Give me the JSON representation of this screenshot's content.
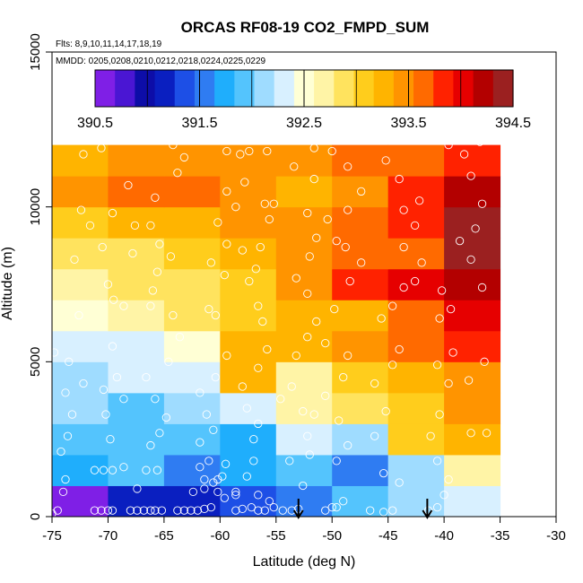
{
  "chart_data": {
    "type": "heatmap",
    "title": "ORCAS RF08-19 CO2_FMPD_SUM",
    "subtitle_flights": "Flts: 8,9,10,11,14,17,18,19",
    "subtitle_dates": "MMDD: 0205,0208,0210,0212,0218,0224,0225,0229",
    "xlabel": "Latitude (deg N)",
    "ylabel": "Altitude (m)",
    "xlim": [
      -75,
      -30
    ],
    "ylim": [
      0,
      15000
    ],
    "xticks": [
      -75,
      -70,
      -65,
      -60,
      -55,
      -50,
      -45,
      -40,
      -35,
      -30
    ],
    "xtick_labels": [
      "-75",
      "-70",
      "-65",
      "-60",
      "-55",
      "-50",
      "-45",
      "-40",
      "-35",
      "-30"
    ],
    "yticks": [
      0,
      5000,
      10000,
      15000
    ],
    "ytick_labels": [
      "0",
      "5000",
      "10000",
      "15000"
    ],
    "colorbar": {
      "min": 390.5,
      "max": 394.5,
      "ticks": [
        390.5,
        391.5,
        392.5,
        393.5,
        394.5
      ],
      "tick_labels": [
        "390.5",
        "391.5",
        "392.5",
        "393.5",
        "394.5"
      ],
      "colors": [
        "#7f1fe6",
        "#4a16d3",
        "#0d0da8",
        "#0a1fc0",
        "#1d4fe6",
        "#2f7cf2",
        "#1faefc",
        "#54c4fd",
        "#9fdcff",
        "#d8f0ff",
        "#ffffd5",
        "#fff4a6",
        "#ffe35e",
        "#ffcd1c",
        "#ffb400",
        "#ff9400",
        "#ff6a00",
        "#ff2200",
        "#e60000",
        "#b30000",
        "#9b2020"
      ]
    },
    "lat_bins": [
      -75,
      -70,
      -65,
      -60,
      -55,
      -50,
      -45,
      -40,
      -35
    ],
    "alt_bins": [
      0,
      1000,
      2000,
      3000,
      4000,
      5000,
      6000,
      7000,
      8000,
      9000,
      10000,
      11000,
      12000
    ],
    "grid": [
      [
        390.6,
        391.1,
        391.2,
        391.4,
        391.6,
        391.9,
        392.1,
        392.3
      ],
      [
        391.8,
        391.9,
        391.5,
        391.7,
        391.9,
        391.6,
        392.2,
        392.6
      ],
      [
        391.9,
        392.0,
        392.0,
        391.8,
        392.3,
        392.1,
        393.0,
        393.3
      ],
      [
        392.1,
        392.0,
        392.2,
        392.4,
        392.6,
        392.8,
        393.1,
        393.4
      ],
      [
        392.2,
        392.3,
        392.4,
        393.2,
        392.7,
        393.0,
        393.2,
        393.5
      ],
      [
        392.3,
        392.4,
        392.5,
        393.3,
        393.2,
        393.4,
        393.7,
        393.9
      ],
      [
        392.5,
        392.7,
        392.9,
        393.1,
        393.2,
        393.3,
        393.7,
        394.0
      ],
      [
        392.6,
        392.8,
        392.8,
        393.0,
        393.4,
        393.8,
        394.0,
        394.2
      ],
      [
        392.9,
        392.9,
        393.1,
        393.2,
        393.5,
        393.6,
        393.7,
        394.6
      ],
      [
        393.1,
        393.2,
        393.3,
        393.4,
        393.5,
        393.7,
        393.8,
        394.7
      ],
      [
        393.5,
        393.6,
        393.6,
        393.5,
        393.3,
        393.5,
        393.9,
        394.2
      ],
      [
        393.2,
        393.4,
        393.4,
        393.4,
        393.5,
        393.6,
        393.7,
        393.8
      ]
    ],
    "arrows_lat": [
      -53,
      -41.5
    ],
    "samples": [
      [
        -75,
        100
      ],
      [
        -74.5,
        200
      ],
      [
        -74,
        800
      ],
      [
        -73.8,
        1200
      ],
      [
        -74.2,
        2100
      ],
      [
        -73.6,
        2600
      ],
      [
        -73.2,
        3300
      ],
      [
        -73.8,
        4000
      ],
      [
        -74.8,
        5300
      ],
      [
        -73.5,
        5000
      ],
      [
        -72.2,
        4300
      ],
      [
        -72.6,
        6500
      ],
      [
        -73,
        8300
      ],
      [
        -71.6,
        9400
      ],
      [
        -72.4,
        9900
      ],
      [
        -70.6,
        11900
      ],
      [
        -72.2,
        11700
      ],
      [
        -71.2,
        200
      ],
      [
        -70.6,
        200
      ],
      [
        -70,
        200
      ],
      [
        -69.6,
        200
      ],
      [
        -70.4,
        1500
      ],
      [
        -71.2,
        1500
      ],
      [
        -69.6,
        1500
      ],
      [
        -68.6,
        1600
      ],
      [
        -69.8,
        2500
      ],
      [
        -70.2,
        3300
      ],
      [
        -70.4,
        4100
      ],
      [
        -69.2,
        4500
      ],
      [
        -68.6,
        3800
      ],
      [
        -69.6,
        5500
      ],
      [
        -68.6,
        6800
      ],
      [
        -69.5,
        7000
      ],
      [
        -70,
        7500
      ],
      [
        -69.6,
        9800
      ],
      [
        -67.6,
        9400
      ],
      [
        -68.2,
        10700
      ],
      [
        -70.5,
        8700
      ],
      [
        -67.8,
        8500
      ],
      [
        -68,
        200
      ],
      [
        -67.4,
        200
      ],
      [
        -66.8,
        200
      ],
      [
        -66.2,
        200
      ],
      [
        -65.8,
        200
      ],
      [
        -65.2,
        200
      ],
      [
        -67.4,
        900
      ],
      [
        -66.6,
        1500
      ],
      [
        -65.6,
        1500
      ],
      [
        -66.2,
        2300
      ],
      [
        -65.4,
        2700
      ],
      [
        -64.8,
        3200
      ],
      [
        -65.8,
        3800
      ],
      [
        -66.6,
        4500
      ],
      [
        -64.6,
        5000
      ],
      [
        -63.6,
        5800
      ],
      [
        -64.2,
        6500
      ],
      [
        -66.2,
        6800
      ],
      [
        -66,
        7300
      ],
      [
        -65.6,
        7900
      ],
      [
        -64.4,
        8400
      ],
      [
        -65.4,
        8800
      ],
      [
        -66.2,
        9400
      ],
      [
        -65.8,
        10300
      ],
      [
        -63.8,
        11100
      ],
      [
        -63.2,
        11600
      ],
      [
        -64.2,
        12000
      ],
      [
        -63.8,
        200
      ],
      [
        -63.2,
        200
      ],
      [
        -62.6,
        200
      ],
      [
        -62,
        200
      ],
      [
        -61.4,
        250
      ],
      [
        -60.8,
        300
      ],
      [
        -62.4,
        800
      ],
      [
        -61.4,
        900
      ],
      [
        -60.6,
        1100
      ],
      [
        -59.8,
        1300
      ],
      [
        -61.8,
        1600
      ],
      [
        -61,
        1800
      ],
      [
        -60.2,
        1200
      ],
      [
        -59.5,
        1700
      ],
      [
        -61.4,
        1200
      ],
      [
        -60.2,
        800
      ],
      [
        -59.6,
        600
      ],
      [
        -58.6,
        800
      ],
      [
        -61.8,
        2400
      ],
      [
        -60.6,
        2800
      ],
      [
        -61.2,
        3300
      ],
      [
        -61.8,
        4000
      ],
      [
        -60.4,
        4500
      ],
      [
        -59.4,
        5200
      ],
      [
        -60.4,
        6500
      ],
      [
        -61,
        6700
      ],
      [
        -59.6,
        7800
      ],
      [
        -60.8,
        8200
      ],
      [
        -59.4,
        8800
      ],
      [
        -58,
        8600
      ],
      [
        -60.2,
        9500
      ],
      [
        -58.6,
        10000
      ],
      [
        -59.4,
        10500
      ],
      [
        -58.2,
        11700
      ],
      [
        -59.4,
        11800
      ],
      [
        -58.6,
        200
      ],
      [
        -58,
        250
      ],
      [
        -57.2,
        300
      ],
      [
        -56.6,
        200
      ],
      [
        -56,
        200
      ],
      [
        -55.2,
        300
      ],
      [
        -58.6,
        700
      ],
      [
        -57.6,
        1300
      ],
      [
        -57,
        1800
      ],
      [
        -56.6,
        700
      ],
      [
        -55.6,
        500
      ],
      [
        -57,
        2500
      ],
      [
        -56.6,
        3000
      ],
      [
        -57.6,
        3500
      ],
      [
        -58,
        4200
      ],
      [
        -56.6,
        4800
      ],
      [
        -55.8,
        5400
      ],
      [
        -56.2,
        6300
      ],
      [
        -56.6,
        6800
      ],
      [
        -57.4,
        7600
      ],
      [
        -56.8,
        8000
      ],
      [
        -56.4,
        8700
      ],
      [
        -55.6,
        9600
      ],
      [
        -55.2,
        10100
      ],
      [
        -56,
        10100
      ],
      [
        -57.8,
        10800
      ],
      [
        -57.4,
        11800
      ],
      [
        -55.8,
        11800
      ],
      [
        -54.4,
        200
      ],
      [
        -53.6,
        200
      ],
      [
        -53,
        250
      ],
      [
        -52.6,
        1000
      ],
      [
        -53.8,
        1800
      ],
      [
        -52,
        2000
      ],
      [
        -54.6,
        3800
      ],
      [
        -53.6,
        4200
      ],
      [
        -52.6,
        3400
      ],
      [
        -51.6,
        3300
      ],
      [
        -52.2,
        2600
      ],
      [
        -53.2,
        5200
      ],
      [
        -52.2,
        5800
      ],
      [
        -51.4,
        6300
      ],
      [
        -52.2,
        7200
      ],
      [
        -53.2,
        7700
      ],
      [
        -52,
        8400
      ],
      [
        -51.4,
        9000
      ],
      [
        -52.2,
        9800
      ],
      [
        -51.6,
        10900
      ],
      [
        -53.4,
        11300
      ],
      [
        -51.6,
        11900
      ],
      [
        -50.6,
        200
      ],
      [
        -50,
        300
      ],
      [
        -49.6,
        300
      ],
      [
        -49,
        500
      ],
      [
        -49.6,
        1800
      ],
      [
        -48.6,
        2300
      ],
      [
        -49.4,
        3100
      ],
      [
        -50.6,
        3900
      ],
      [
        -49,
        4500
      ],
      [
        -48.6,
        5200
      ],
      [
        -50.6,
        5600
      ],
      [
        -49.8,
        6700
      ],
      [
        -48.4,
        7600
      ],
      [
        -47.4,
        8200
      ],
      [
        -48.8,
        8700
      ],
      [
        -49.6,
        8900
      ],
      [
        -50.4,
        9600
      ],
      [
        -48.6,
        9900
      ],
      [
        -47.4,
        10500
      ],
      [
        -48.6,
        11300
      ],
      [
        -50,
        11800
      ],
      [
        -46.6,
        200
      ],
      [
        -45.4,
        150
      ],
      [
        -44.6,
        200
      ],
      [
        -44,
        1100
      ],
      [
        -45.4,
        1400
      ],
      [
        -46.2,
        2600
      ],
      [
        -45.2,
        3400
      ],
      [
        -46.2,
        4300
      ],
      [
        -44.6,
        4900
      ],
      [
        -44,
        5400
      ],
      [
        -45.6,
        6400
      ],
      [
        -44.6,
        6800
      ],
      [
        -43.6,
        7400
      ],
      [
        -42.6,
        7600
      ],
      [
        -42,
        8200
      ],
      [
        -43.6,
        8700
      ],
      [
        -42.6,
        9400
      ],
      [
        -43.6,
        9900
      ],
      [
        -42.2,
        10200
      ],
      [
        -44,
        10900
      ],
      [
        -45.2,
        11500
      ],
      [
        -41.4,
        200
      ],
      [
        -40.6,
        300
      ],
      [
        -40,
        700
      ],
      [
        -39.6,
        1200
      ],
      [
        -40.6,
        1800
      ],
      [
        -41.2,
        2600
      ],
      [
        -40.4,
        3300
      ],
      [
        -39.6,
        4300
      ],
      [
        -40.6,
        4900
      ],
      [
        -39.2,
        5300
      ],
      [
        -40.4,
        6400
      ],
      [
        -39.4,
        6700
      ],
      [
        -40.2,
        7300
      ],
      [
        -38.6,
        8900
      ],
      [
        -37.6,
        8300
      ],
      [
        -37.2,
        9300
      ],
      [
        -36.6,
        10100
      ],
      [
        -37.6,
        11000
      ],
      [
        -38.2,
        11700
      ],
      [
        -39.6,
        12000
      ],
      [
        -36.8,
        12100
      ],
      [
        -36.6,
        7400
      ],
      [
        -37.8,
        4400
      ],
      [
        -36.4,
        5000
      ],
      [
        -37.6,
        2700
      ],
      [
        -36.2,
        2700
      ]
    ]
  }
}
